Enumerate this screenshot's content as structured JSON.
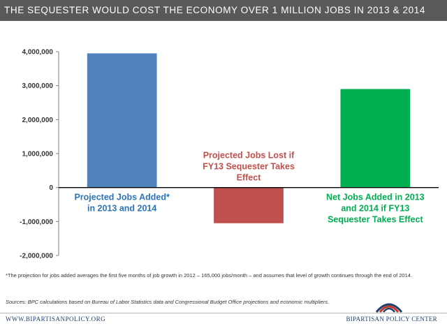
{
  "title": "THE SEQUESTER WOULD COST THE ECONOMY OVER 1 MILLION JOBS IN 2013 & 2014",
  "chart_data": {
    "type": "bar",
    "ylim": [
      -2000000,
      4000000
    ],
    "yticks": [
      {
        "value": 4000000,
        "label": "4,000,000"
      },
      {
        "value": 3000000,
        "label": "3,000,000"
      },
      {
        "value": 2000000,
        "label": "2,000,000"
      },
      {
        "value": 1000000,
        "label": "1,000,000"
      },
      {
        "value": 0,
        "label": "0"
      },
      {
        "value": -1000000,
        "label": "-1,000,000"
      },
      {
        "value": -2000000,
        "label": "-2,000,000"
      }
    ],
    "grid": false,
    "bars": [
      {
        "label_lines": [
          "Projected Jobs Added*",
          "in 2013 and 2014"
        ],
        "value": 3950000,
        "color": "#4f81bd",
        "label_color": "#2e74b5",
        "label_side": "below"
      },
      {
        "label_lines": [
          "Projected Jobs Lost if",
          "FY13 Sequester Takes",
          "Effect"
        ],
        "value": -1050000,
        "color": "#c0504d",
        "label_color": "#c0504d",
        "label_side": "above"
      },
      {
        "label_lines": [
          "Net Jobs Added in 2013",
          "and 2014 if FY13",
          "Sequester Takes Effect"
        ],
        "value": 2900000,
        "color": "#00b050",
        "label_color": "#00b050",
        "label_side": "below"
      }
    ]
  },
  "footnote": "*The projection for jobs added averages the first five months of job growth in 2012 – 165,000 jobs/month – and assumes that level of growth continues through the end of 2014.",
  "sources": "Sources: BPC calculations based on Bureau of Labor Statistics data and Congressional Budget Office projections and economic multipliers.",
  "footer": {
    "website": "WWW.BIPARTISANPOLICY.ORG",
    "org": "BIPARTISAN POLICY CENTER",
    "logo_colors": {
      "blue": "#1f3f6e",
      "red": "#c0392b"
    }
  }
}
